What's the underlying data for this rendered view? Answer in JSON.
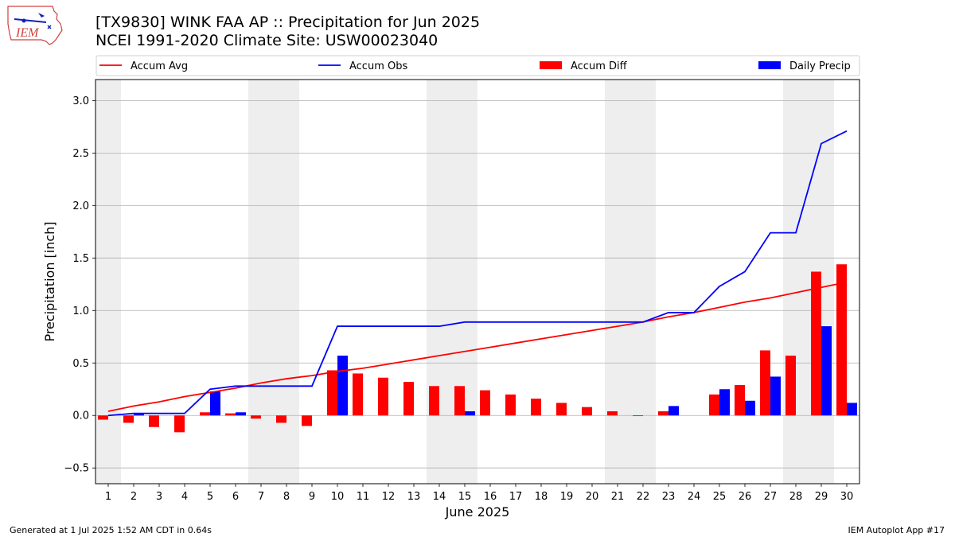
{
  "header": {
    "title_line1": "[TX9830] WINK FAA AP :: Precipitation for Jun 2025",
    "title_line2": "NCEI 1991-2020 Climate Site: USW00023040",
    "logo_text": "IEM"
  },
  "footer": {
    "left": "Generated at 1 Jul 2025 1:52 AM CDT in 0.64s",
    "right": "IEM Autoplot App #17"
  },
  "colors": {
    "avg": "#ff0000",
    "obs": "#0000ff",
    "diff": "#ff0000",
    "daily": "#0000ff",
    "weekend_band": "#eeeeee",
    "grid": "#b0b0b0"
  },
  "chart_data": {
    "type": "bar",
    "xlabel": "June 2025",
    "ylabel": "Precipitation [inch]",
    "ylim": [
      -0.65,
      3.2
    ],
    "yticks": [
      -0.5,
      0.0,
      0.5,
      1.0,
      1.5,
      2.0,
      2.5,
      3.0
    ],
    "ytick_labels": [
      "−0.5",
      "0.0",
      "0.5",
      "1.0",
      "1.5",
      "2.0",
      "2.5",
      "3.0"
    ],
    "x": [
      1,
      2,
      3,
      4,
      5,
      6,
      7,
      8,
      9,
      10,
      11,
      12,
      13,
      14,
      15,
      16,
      17,
      18,
      19,
      20,
      21,
      22,
      23,
      24,
      25,
      26,
      27,
      28,
      29,
      30
    ],
    "grid": "horizontal",
    "legend_position": "top",
    "shaded_days": [
      1,
      7,
      8,
      14,
      15,
      21,
      22,
      28,
      29
    ],
    "series": [
      {
        "name": "Accum Avg",
        "kind": "line",
        "color": "#ff0000",
        "values": [
          0.04,
          0.09,
          0.13,
          0.18,
          0.22,
          0.26,
          0.31,
          0.35,
          0.38,
          0.42,
          0.45,
          0.49,
          0.53,
          0.57,
          0.61,
          0.65,
          0.69,
          0.73,
          0.77,
          0.81,
          0.85,
          0.89,
          0.94,
          0.98,
          1.03,
          1.08,
          1.12,
          1.17,
          1.22,
          1.27
        ]
      },
      {
        "name": "Accum Obs",
        "kind": "line",
        "color": "#0000ff",
        "values": [
          0.0,
          0.02,
          0.02,
          0.02,
          0.25,
          0.28,
          0.28,
          0.28,
          0.28,
          0.85,
          0.85,
          0.85,
          0.85,
          0.85,
          0.89,
          0.89,
          0.89,
          0.89,
          0.89,
          0.89,
          0.89,
          0.89,
          0.98,
          0.98,
          1.23,
          1.37,
          1.74,
          1.74,
          2.59,
          2.71
        ]
      },
      {
        "name": "Accum Diff",
        "kind": "bar",
        "color": "#ff0000",
        "values": [
          -0.04,
          -0.07,
          -0.11,
          -0.16,
          0.03,
          0.02,
          -0.03,
          -0.07,
          -0.1,
          0.43,
          0.4,
          0.36,
          0.32,
          0.28,
          0.28,
          0.24,
          0.2,
          0.16,
          0.12,
          0.08,
          0.04,
          -0.003,
          0.04,
          0.0,
          0.2,
          0.29,
          0.62,
          0.57,
          1.37,
          1.44
        ]
      },
      {
        "name": "Daily Precip",
        "kind": "bar",
        "color": "#0000ff",
        "values": [
          0.0,
          0.02,
          0.0,
          0.0,
          0.23,
          0.03,
          0.0,
          0.0,
          0.0,
          0.57,
          0.0,
          0.0,
          0.0,
          0.0,
          0.04,
          0.0,
          0.0,
          0.0,
          0.0,
          0.0,
          0.0,
          0.0,
          0.09,
          0.0,
          0.25,
          0.14,
          0.37,
          0.0,
          0.85,
          0.12
        ]
      }
    ]
  }
}
